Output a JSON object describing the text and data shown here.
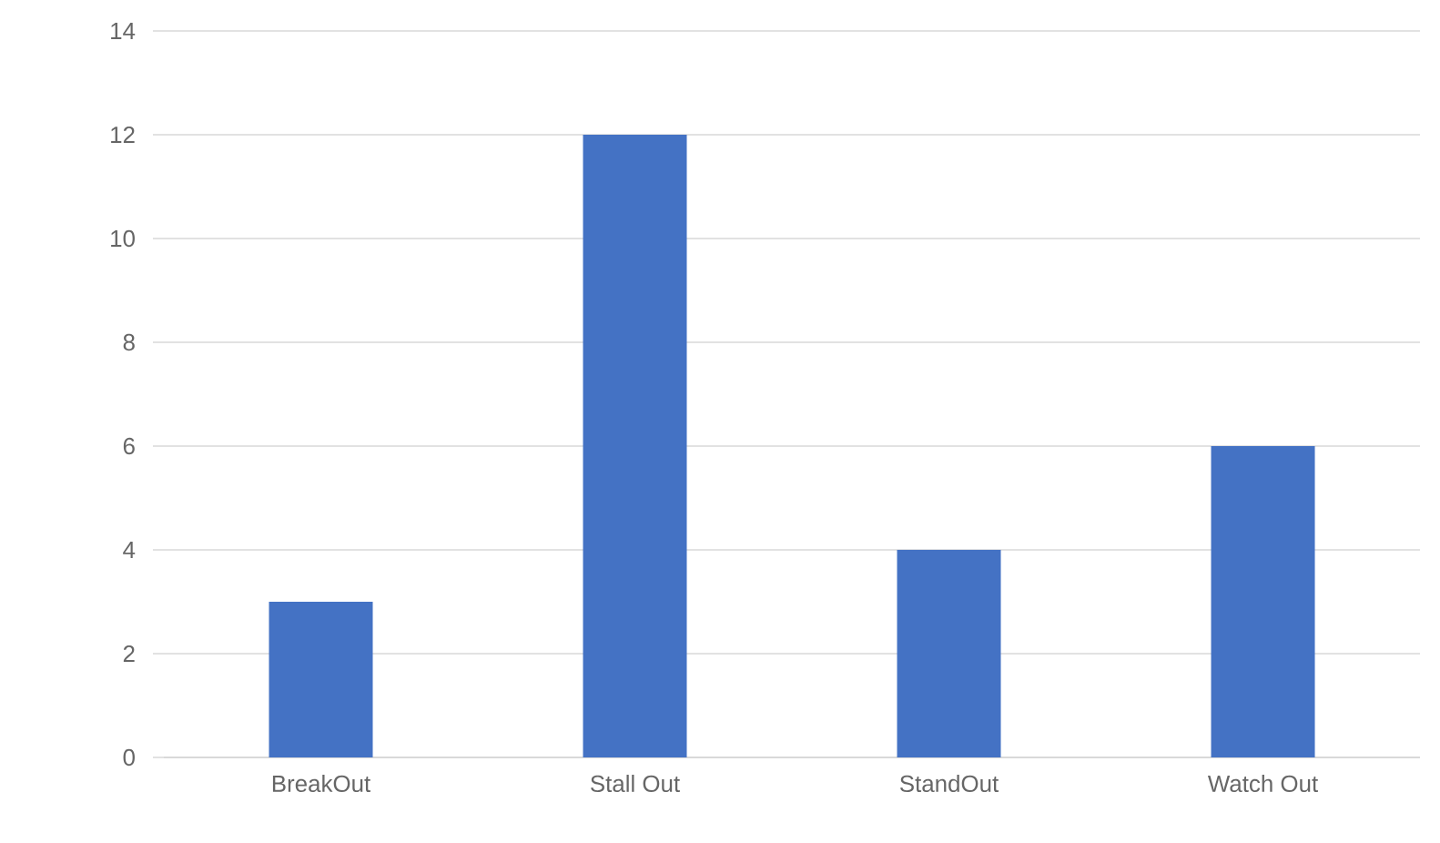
{
  "chart_data": {
    "type": "bar",
    "categories": [
      "BreakOut",
      "Stall Out",
      "StandOut",
      "Watch Out"
    ],
    "values": [
      3,
      12,
      4,
      6
    ],
    "color": "#4472c4",
    "ylim": [
      0,
      14
    ],
    "yticks": [
      0,
      2,
      4,
      6,
      8,
      10,
      12,
      14
    ],
    "grid": "y"
  }
}
